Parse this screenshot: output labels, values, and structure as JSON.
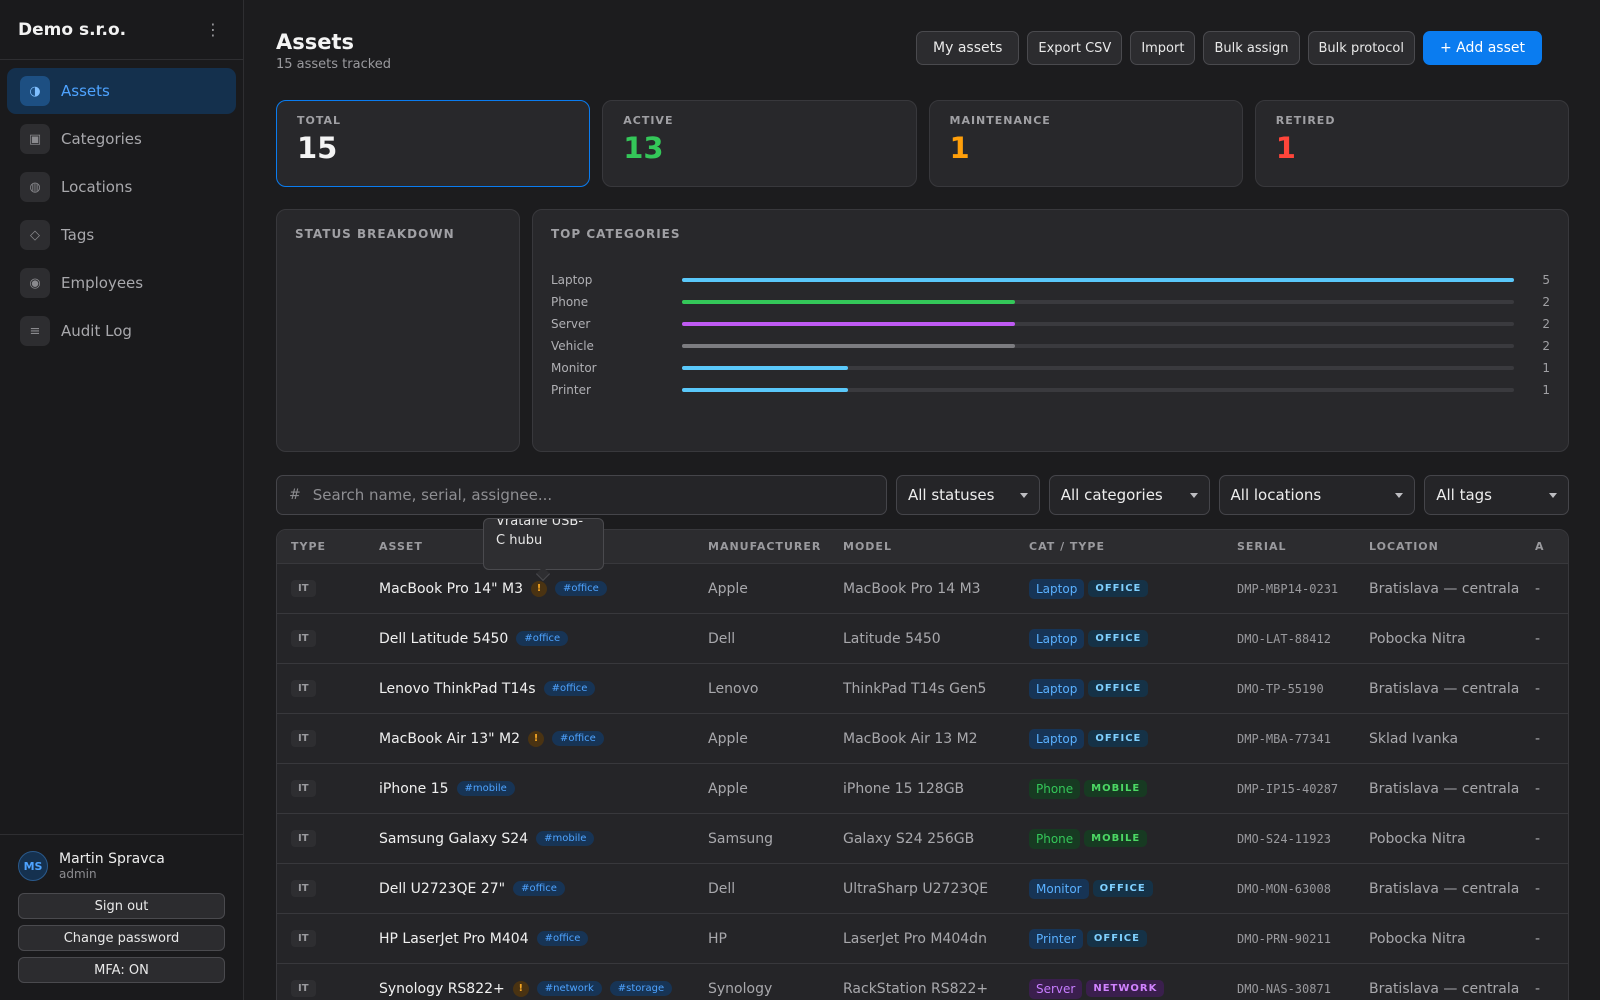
{
  "sidebar": {
    "brand": "Demo s.r.o.",
    "menu_icon": "⋮",
    "items": [
      {
        "label": "Assets",
        "icon": "◑",
        "active": true
      },
      {
        "label": "Categories",
        "icon": "▣",
        "active": false
      },
      {
        "label": "Locations",
        "icon": "◍",
        "active": false
      },
      {
        "label": "Tags",
        "icon": "◇",
        "active": false
      },
      {
        "label": "Employees",
        "icon": "◉",
        "active": false
      },
      {
        "label": "Audit Log",
        "icon": "≡",
        "active": false
      }
    ],
    "user": {
      "initials": "MS",
      "name": "Martin Spravca",
      "role": "admin",
      "sign_out": "Sign out",
      "change_password": "Change password",
      "mfa": "MFA: ON"
    }
  },
  "header": {
    "title": "Assets",
    "subtitle": "15 assets tracked",
    "actions": {
      "my_assets": "My assets",
      "export_csv": "Export CSV",
      "import": "Import",
      "bulk_assign": "Bulk assign",
      "bulk_protocol": "Bulk protocol",
      "add_asset": "+ Add asset"
    }
  },
  "stats": [
    {
      "label": "TOTAL",
      "value": "15",
      "color": "#f4f4f4"
    },
    {
      "label": "ACTIVE",
      "value": "13",
      "color": "#34c759"
    },
    {
      "label": "MAINTENANCE",
      "value": "1",
      "color": "#ff9f0a"
    },
    {
      "label": "RETIRED",
      "value": "1",
      "color": "#ff453a"
    }
  ],
  "status_breakdown": {
    "title": "STATUS BREAKDOWN"
  },
  "top_categories": {
    "title": "TOP CATEGORIES",
    "max": 5,
    "items": [
      {
        "label": "Laptop",
        "count": 5,
        "color": "#5ac8fa"
      },
      {
        "label": "Phone",
        "count": 2,
        "color": "#34c759"
      },
      {
        "label": "Server",
        "count": 2,
        "color": "#bf5af2"
      },
      {
        "label": "Vehicle",
        "count": 2,
        "color": "#7c7c80"
      },
      {
        "label": "Monitor",
        "count": 1,
        "color": "#5ac8fa"
      },
      {
        "label": "Printer",
        "count": 1,
        "color": "#5ac8fa"
      }
    ]
  },
  "filters": {
    "search_icon": "#",
    "search_placeholder": "Search name, serial, assignee...",
    "status": "All statuses",
    "category": "All categories",
    "location": "All locations",
    "tags": "All tags"
  },
  "tooltip": {
    "text": "Vratane USB-C hubu"
  },
  "table": {
    "headers": {
      "type": "TYPE",
      "asset": "ASSET",
      "manufacturer": "MANUFACTURER",
      "model": "MODEL",
      "cat_type": "CAT / TYPE",
      "serial": "SERIAL",
      "location": "LOCATION",
      "extra": "A"
    },
    "rows": [
      {
        "type": "IT",
        "name": "MacBook Pro 14\" M3",
        "warn": true,
        "tags": [
          "#office"
        ],
        "manufacturer": "Apple",
        "model": "MacBook Pro 14 M3",
        "category": "Laptop",
        "group": "OFFICE",
        "serial": "DMP-MBP14-0231",
        "location": "Bratislava — centrala",
        "extra": "-"
      },
      {
        "type": "IT",
        "name": "Dell Latitude 5450",
        "warn": false,
        "tags": [
          "#office"
        ],
        "manufacturer": "Dell",
        "model": "Latitude 5450",
        "category": "Laptop",
        "group": "OFFICE",
        "serial": "DMO-LAT-88412",
        "location": "Pobocka Nitra",
        "extra": "-"
      },
      {
        "type": "IT",
        "name": "Lenovo ThinkPad T14s",
        "warn": false,
        "tags": [
          "#office"
        ],
        "manufacturer": "Lenovo",
        "model": "ThinkPad T14s Gen5",
        "category": "Laptop",
        "group": "OFFICE",
        "serial": "DMO-TP-55190",
        "location": "Bratislava — centrala",
        "extra": "-"
      },
      {
        "type": "IT",
        "name": "MacBook Air 13\" M2",
        "warn": true,
        "tags": [
          "#office"
        ],
        "manufacturer": "Apple",
        "model": "MacBook Air 13 M2",
        "category": "Laptop",
        "group": "OFFICE",
        "serial": "DMP-MBA-77341",
        "location": "Sklad Ivanka",
        "extra": "-"
      },
      {
        "type": "IT",
        "name": "iPhone 15",
        "warn": false,
        "tags": [
          "#mobile"
        ],
        "manufacturer": "Apple",
        "model": "iPhone 15 128GB",
        "category": "Phone",
        "group": "MOBILE",
        "serial": "DMP-IP15-40287",
        "location": "Bratislava — centrala",
        "extra": "-"
      },
      {
        "type": "IT",
        "name": "Samsung Galaxy S24",
        "warn": false,
        "tags": [
          "#mobile"
        ],
        "manufacturer": "Samsung",
        "model": "Galaxy S24 256GB",
        "category": "Phone",
        "group": "MOBILE",
        "serial": "DMO-S24-11923",
        "location": "Pobocka Nitra",
        "extra": "-"
      },
      {
        "type": "IT",
        "name": "Dell U2723QE 27\"",
        "warn": false,
        "tags": [
          "#office"
        ],
        "manufacturer": "Dell",
        "model": "UltraSharp U2723QE",
        "category": "Monitor",
        "group": "OFFICE",
        "serial": "DMO-MON-63008",
        "location": "Bratislava — centrala",
        "extra": "-"
      },
      {
        "type": "IT",
        "name": "HP LaserJet Pro M404",
        "warn": false,
        "tags": [
          "#office"
        ],
        "manufacturer": "HP",
        "model": "LaserJet Pro M404dn",
        "category": "Printer",
        "group": "OFFICE",
        "serial": "DMO-PRN-90211",
        "location": "Pobocka Nitra",
        "extra": "-"
      },
      {
        "type": "IT",
        "name": "Synology RS822+",
        "warn": true,
        "tags": [
          "#network",
          "#storage"
        ],
        "manufacturer": "Synology",
        "model": "RackStation RS822+",
        "category": "Server",
        "group": "NETWORK",
        "serial": "DMO-NAS-30871",
        "location": "Bratislava — centrala",
        "extra": "-"
      }
    ]
  },
  "colors": {
    "accent": "#0a7cf0",
    "cat": {
      "Laptop": {
        "fg": "#5ab0ff",
        "bg": "#173455"
      },
      "Phone": {
        "fg": "#34c759",
        "bg": "#173a22"
      },
      "Monitor": {
        "fg": "#5ab0ff",
        "bg": "#173455"
      },
      "Printer": {
        "fg": "#5ab0ff",
        "bg": "#173455"
      },
      "Server": {
        "fg": "#c77dff",
        "bg": "#3a1f4d"
      }
    },
    "group": {
      "OFFICE": {
        "fg": "#7fd0ff",
        "bg": "#153247"
      },
      "MOBILE": {
        "fg": "#4cd964",
        "bg": "#173a22"
      },
      "NETWORK": {
        "fg": "#d183ff",
        "bg": "#3a1f4d"
      }
    }
  }
}
